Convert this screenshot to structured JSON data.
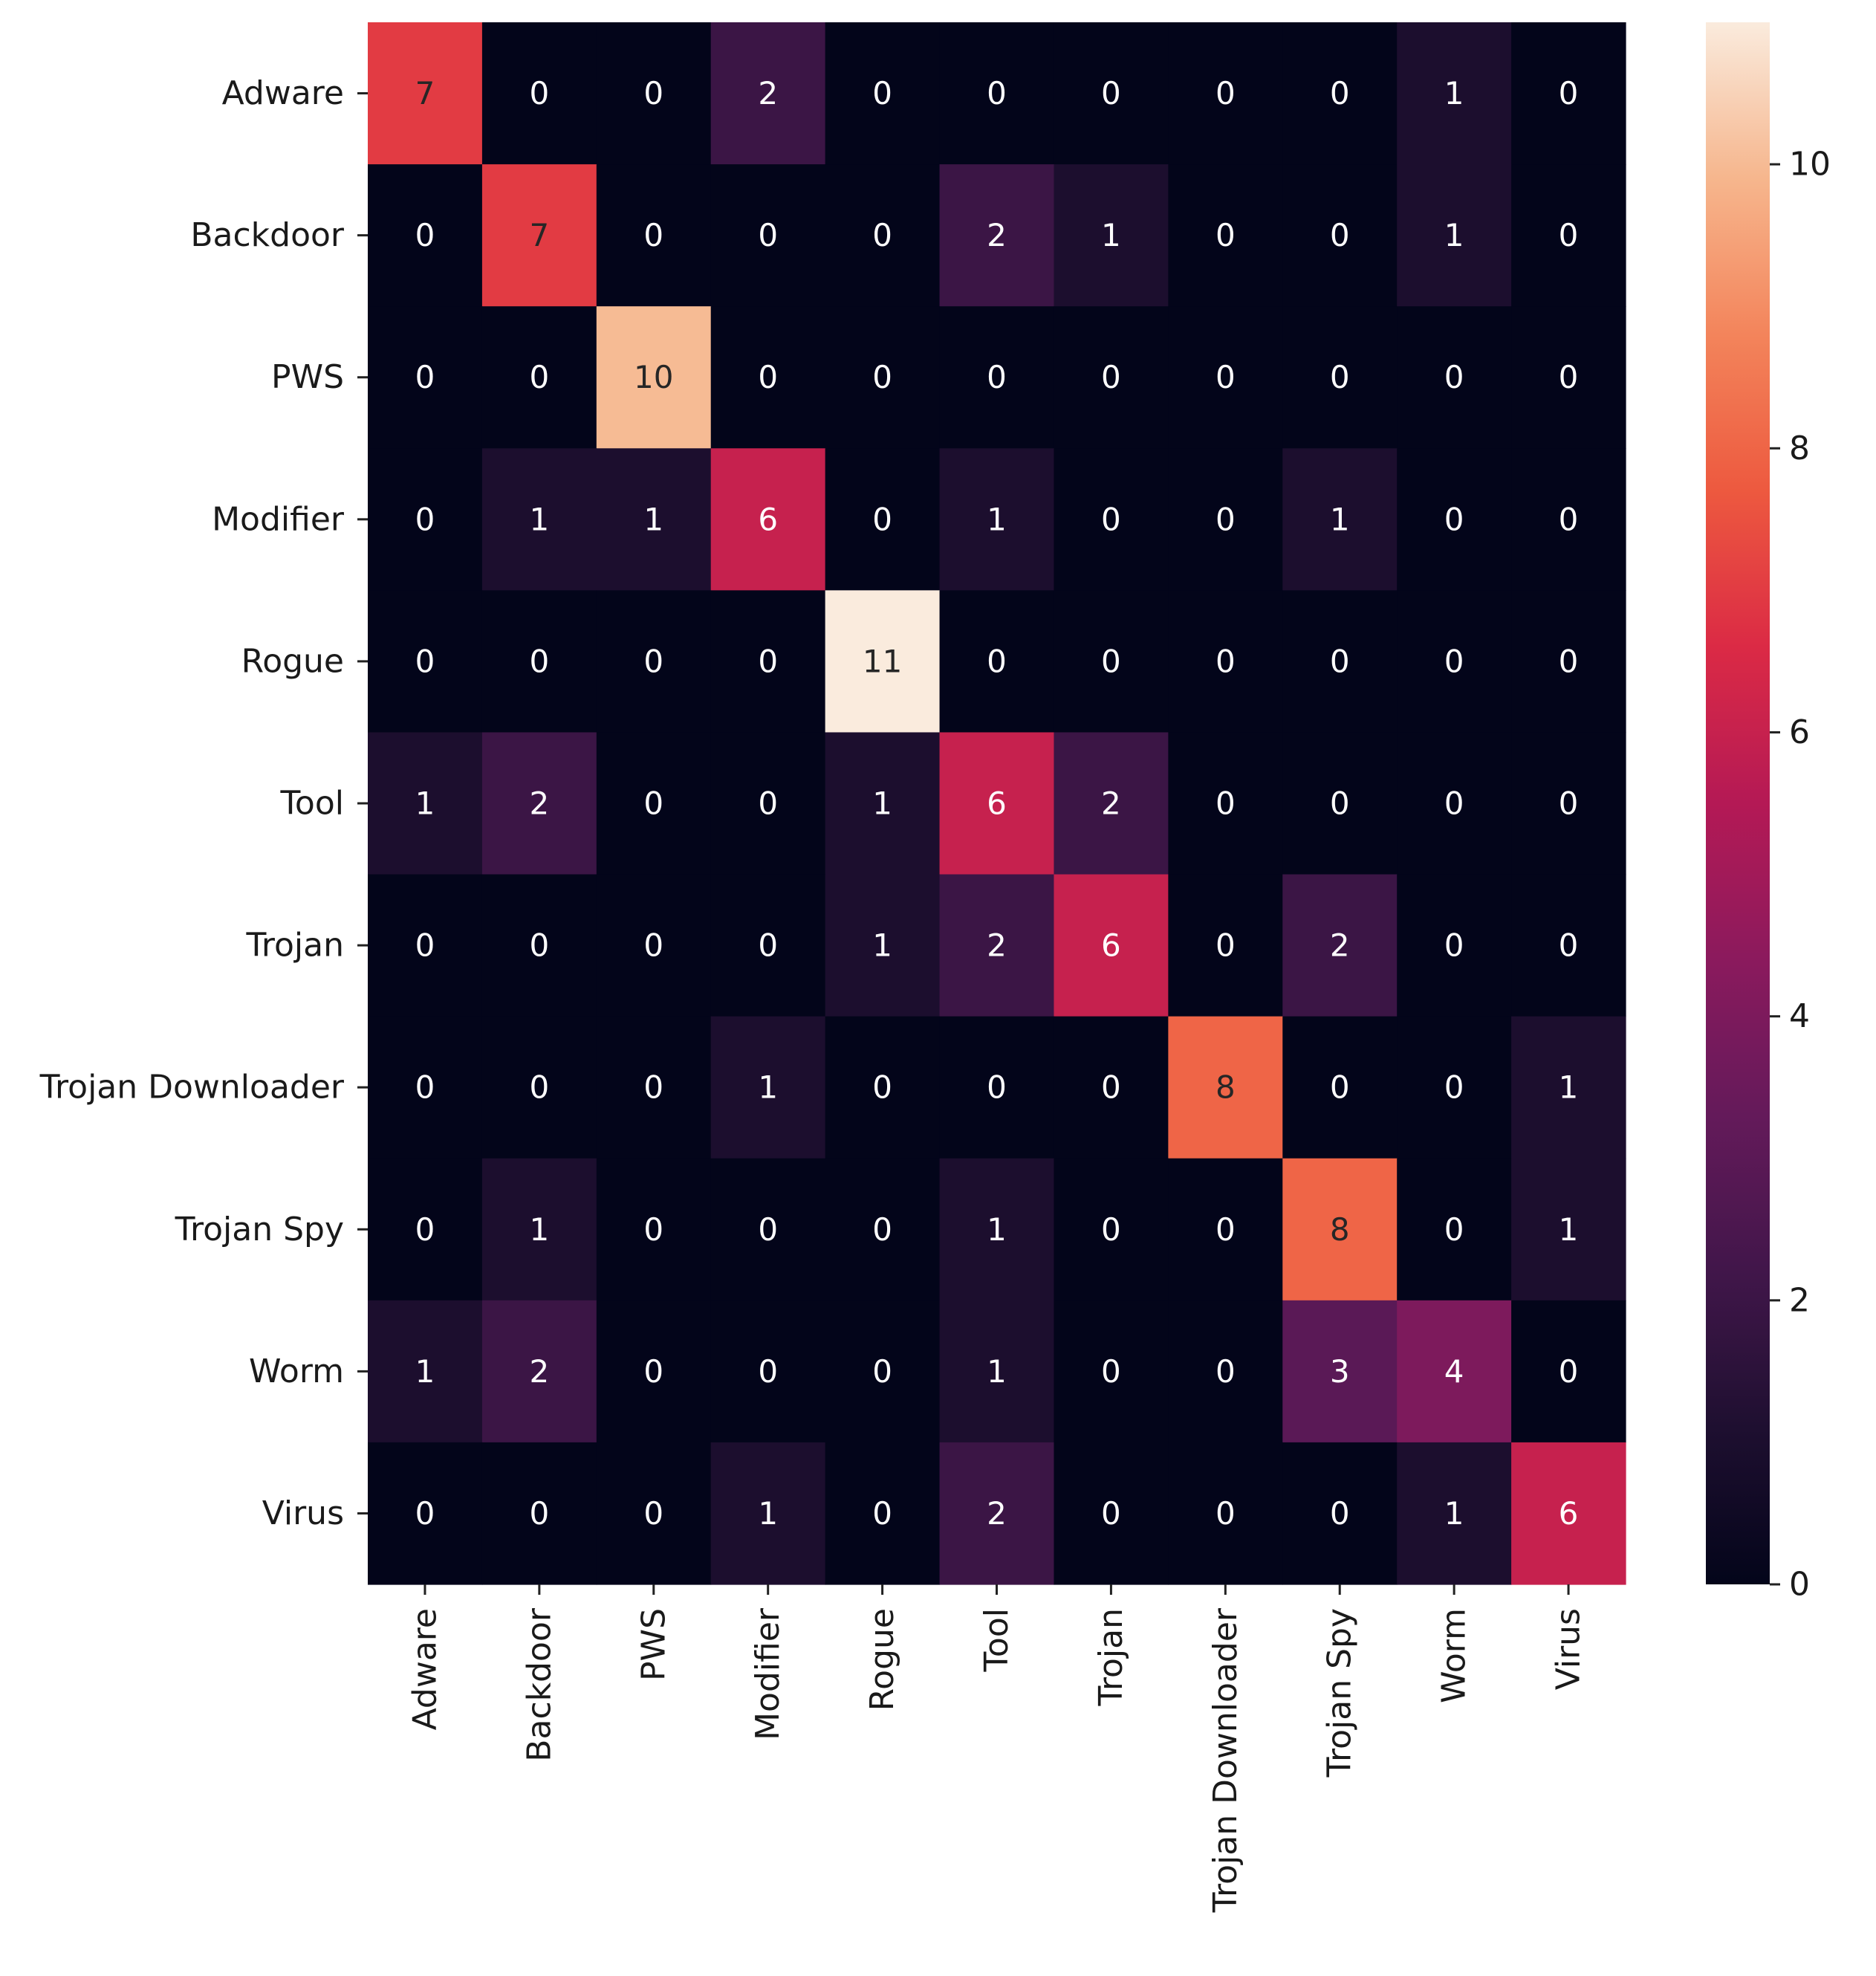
{
  "chart_data": {
    "type": "heatmap",
    "title": "",
    "xlabel": "",
    "ylabel": "",
    "rows": [
      "Adware",
      "Backdoor",
      "PWS",
      "Modifier",
      "Rogue",
      "Tool",
      "Trojan",
      "Trojan Downloader",
      "Trojan Spy",
      "Worm",
      "Virus"
    ],
    "columns": [
      "Adware",
      "Backdoor",
      "PWS",
      "Modifier",
      "Rogue",
      "Tool",
      "Trojan",
      "Trojan Downloader",
      "Trojan Spy",
      "Worm",
      "Virus"
    ],
    "values": [
      [
        7,
        0,
        0,
        2,
        0,
        0,
        0,
        0,
        0,
        1,
        0
      ],
      [
        0,
        7,
        0,
        0,
        0,
        2,
        1,
        0,
        0,
        1,
        0
      ],
      [
        0,
        0,
        10,
        0,
        0,
        0,
        0,
        0,
        0,
        0,
        0
      ],
      [
        0,
        1,
        1,
        6,
        0,
        1,
        0,
        0,
        1,
        0,
        0
      ],
      [
        0,
        0,
        0,
        0,
        11,
        0,
        0,
        0,
        0,
        0,
        0
      ],
      [
        1,
        2,
        0,
        0,
        1,
        6,
        2,
        0,
        0,
        0,
        0
      ],
      [
        0,
        0,
        0,
        0,
        1,
        2,
        6,
        0,
        2,
        0,
        0
      ],
      [
        0,
        0,
        0,
        1,
        0,
        0,
        0,
        8,
        0,
        0,
        1
      ],
      [
        0,
        1,
        0,
        0,
        0,
        1,
        0,
        0,
        8,
        0,
        1
      ],
      [
        1,
        2,
        0,
        0,
        0,
        1,
        0,
        0,
        3,
        4,
        0
      ],
      [
        0,
        0,
        0,
        1,
        0,
        2,
        0,
        0,
        0,
        1,
        6
      ]
    ],
    "colorbar": {
      "min": 0,
      "max": 11,
      "ticks": [
        "0",
        "2",
        "4",
        "6",
        "8",
        "10"
      ]
    },
    "colormap": "rocket",
    "grid": false,
    "legend": "colorbar-right"
  }
}
